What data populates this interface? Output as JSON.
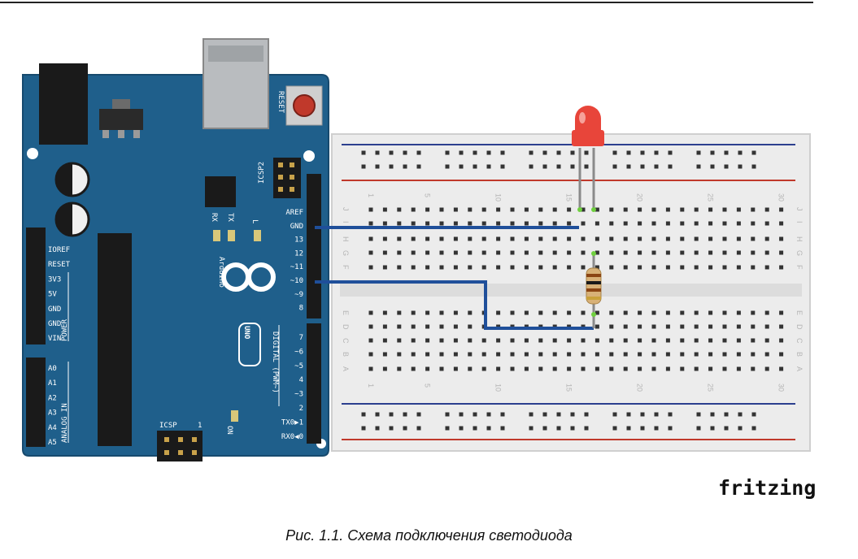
{
  "brand": "fritzing",
  "caption": "Рис. 1.1. Схема подключения светодиода",
  "board": {
    "name": "Arduino",
    "model": "UNO",
    "trademark": "™",
    "labels": {
      "reset": "RESET",
      "icsp2": "ICSP2",
      "icsp": "ICSP",
      "icsp_pin1": "1",
      "rx": "RX",
      "tx": "TX",
      "l": "L",
      "on": "ON",
      "digital": "DIGITAL (PWM~)",
      "power": "POWER",
      "analog": "ANALOG IN"
    },
    "power_pins": [
      "IOREF",
      "RESET",
      "3V3",
      "5V",
      "GND",
      "GND",
      "VIN"
    ],
    "analog_pins": [
      "A0",
      "A1",
      "A2",
      "A3",
      "A4",
      "A5"
    ],
    "digital_top": [
      "AREF",
      "GND",
      "13",
      "12",
      "~11",
      "~10",
      "~9",
      "8"
    ],
    "digital_bottom": [
      "7",
      "~6",
      "~5",
      "4",
      "~3",
      "2",
      "TX0▶1",
      "RX0◀0"
    ]
  },
  "breadboard": {
    "column_numbers": [
      "1",
      "5",
      "10",
      "15",
      "20",
      "25",
      "30"
    ],
    "rows_top": [
      "J",
      "I",
      "H",
      "G",
      "F"
    ],
    "rows_bottom": [
      "E",
      "D",
      "C",
      "B",
      "A"
    ]
  },
  "colors": {
    "board": "#1f5f8b",
    "wire": "#1f4f9a",
    "led": "#e8453a",
    "rail_red": "#c0392b",
    "rail_blue": "#2c3f8f"
  }
}
